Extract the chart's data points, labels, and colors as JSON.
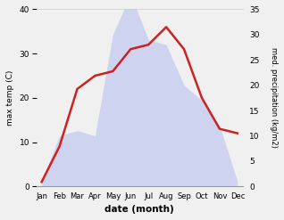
{
  "months": [
    "Jan",
    "Feb",
    "Mar",
    "Apr",
    "May",
    "Jun",
    "Jul",
    "Aug",
    "Sep",
    "Oct",
    "Nov",
    "Dec"
  ],
  "temperature": [
    1,
    9,
    22,
    25,
    26,
    31,
    32,
    36,
    31,
    20,
    13,
    12
  ],
  "precipitation": [
    1,
    10,
    11,
    10,
    30,
    38,
    29,
    28,
    20,
    17,
    12,
    1
  ],
  "temp_color": "#cc2222",
  "precip_fill_color": "#c0c8f0",
  "precip_fill_alpha": 0.7,
  "xlabel": "date (month)",
  "ylabel_left": "max temp (C)",
  "ylabel_right": "med. precipitation (kg/m2)",
  "ylim_left": [
    0,
    40
  ],
  "ylim_right": [
    0,
    35
  ],
  "yticks_left": [
    0,
    10,
    20,
    30,
    40
  ],
  "yticks_right": [
    0,
    5,
    10,
    15,
    20,
    25,
    30,
    35
  ],
  "background_color": "#f0f0f0",
  "temp_linewidth": 1.8,
  "spine_color": "#999999"
}
